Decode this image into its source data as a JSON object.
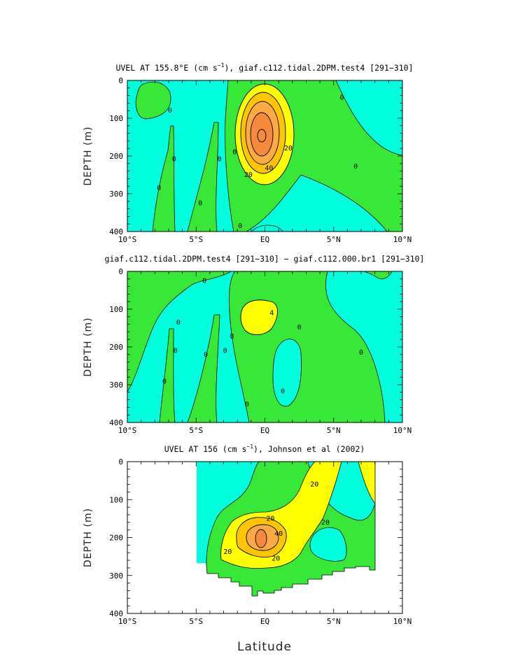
{
  "colors": {
    "neg": "#00ffdd",
    "c0": "#38e838",
    "c10": "#ffff00",
    "c20": "#ffc600",
    "c30": "#fbaa44",
    "c40": "#f58a3a",
    "line": "#000000"
  },
  "figure": {
    "xlabel": "Latitude"
  },
  "chart_data": [
    {
      "type": "contour",
      "title_main": "UVEL AT 155.8°E (cm s",
      "title_sup": "−1",
      "title_rest": "), giaf.c112.tidal.2DPM.test4 [291−310]",
      "ylabel": "DEPTH (m)",
      "xlim": [
        -10,
        10
      ],
      "ylim": [
        400,
        0
      ],
      "xticks": [
        "10°S",
        "5°S",
        "EQ",
        "5°N",
        "10°N"
      ],
      "yticks": [
        "0",
        "100",
        "200",
        "300",
        "400"
      ],
      "core": {
        "lat": -0.2,
        "depth": 180,
        "max": 50
      },
      "contour_labels": [
        {
          "text": "0",
          "lat": -6.9,
          "depth": 80
        },
        {
          "text": "0",
          "lat": -6.6,
          "depth": 208
        },
        {
          "text": "0",
          "lat": -7.7,
          "depth": 285
        },
        {
          "text": "0",
          "lat": -4.7,
          "depth": 325
        },
        {
          "text": "0",
          "lat": -3.3,
          "depth": 208
        },
        {
          "text": "0",
          "lat": -2.2,
          "depth": 190
        },
        {
          "text": "0",
          "lat": -1.8,
          "depth": 385
        },
        {
          "text": "0",
          "lat": 5.6,
          "depth": 45
        },
        {
          "text": "0",
          "lat": 6.6,
          "depth": 228
        },
        {
          "text": "20",
          "lat": 1.7,
          "depth": 180
        },
        {
          "text": "40",
          "lat": 0.3,
          "depth": 232
        },
        {
          "text": "20",
          "lat": -1.2,
          "depth": 250
        }
      ]
    },
    {
      "type": "contour",
      "title_main": "giaf.c112.tidal.2DPM.test4 [291−310] − giaf.c112.000.br1 [291−310]",
      "ylabel": "DEPTH (m)",
      "xlim": [
        -10,
        10
      ],
      "ylim": [
        400,
        0
      ],
      "xticks": [
        "10°S",
        "5°S",
        "EQ",
        "5°N",
        "10°N"
      ],
      "yticks": [
        "0",
        "100",
        "200",
        "300",
        "400"
      ],
      "contour_labels": [
        {
          "text": "0",
          "lat": -4.4,
          "depth": 25
        },
        {
          "text": "0",
          "lat": -6.3,
          "depth": 135
        },
        {
          "text": "0",
          "lat": -6.5,
          "depth": 210
        },
        {
          "text": "0",
          "lat": -7.3,
          "depth": 292
        },
        {
          "text": "0",
          "lat": -4.3,
          "depth": 220
        },
        {
          "text": "0",
          "lat": -2.9,
          "depth": 210
        },
        {
          "text": "0",
          "lat": -2.4,
          "depth": 172
        },
        {
          "text": "0",
          "lat": -1.3,
          "depth": 352
        },
        {
          "text": "0",
          "lat": 1.3,
          "depth": 318
        },
        {
          "text": "0",
          "lat": 2.5,
          "depth": 148
        },
        {
          "text": "0",
          "lat": 7.0,
          "depth": 215
        },
        {
          "text": "4",
          "lat": 0.5,
          "depth": 110
        }
      ]
    },
    {
      "type": "contour",
      "title_main": "UVEL AT 156 (cm s",
      "title_sup": "−1",
      "title_rest": "), Johnson et al (2002)",
      "ylabel": "DEPTH (m)",
      "xlim": [
        -10,
        10
      ],
      "ylim": [
        400,
        0
      ],
      "xticks": [
        "10°S",
        "5°S",
        "EQ",
        "5°N",
        "10°N"
      ],
      "yticks": [
        "0",
        "100",
        "200",
        "300",
        "400"
      ],
      "data_lat_range": [
        -5,
        8
      ],
      "contour_labels": [
        {
          "text": "20",
          "lat": 3.6,
          "depth": 60
        },
        {
          "text": "20",
          "lat": 0.4,
          "depth": 150
        },
        {
          "text": "40",
          "lat": 1.0,
          "depth": 190
        },
        {
          "text": "20",
          "lat": -2.7,
          "depth": 238
        },
        {
          "text": "20",
          "lat": 0.8,
          "depth": 255
        },
        {
          "text": "20",
          "lat": 4.4,
          "depth": 160
        }
      ]
    }
  ]
}
